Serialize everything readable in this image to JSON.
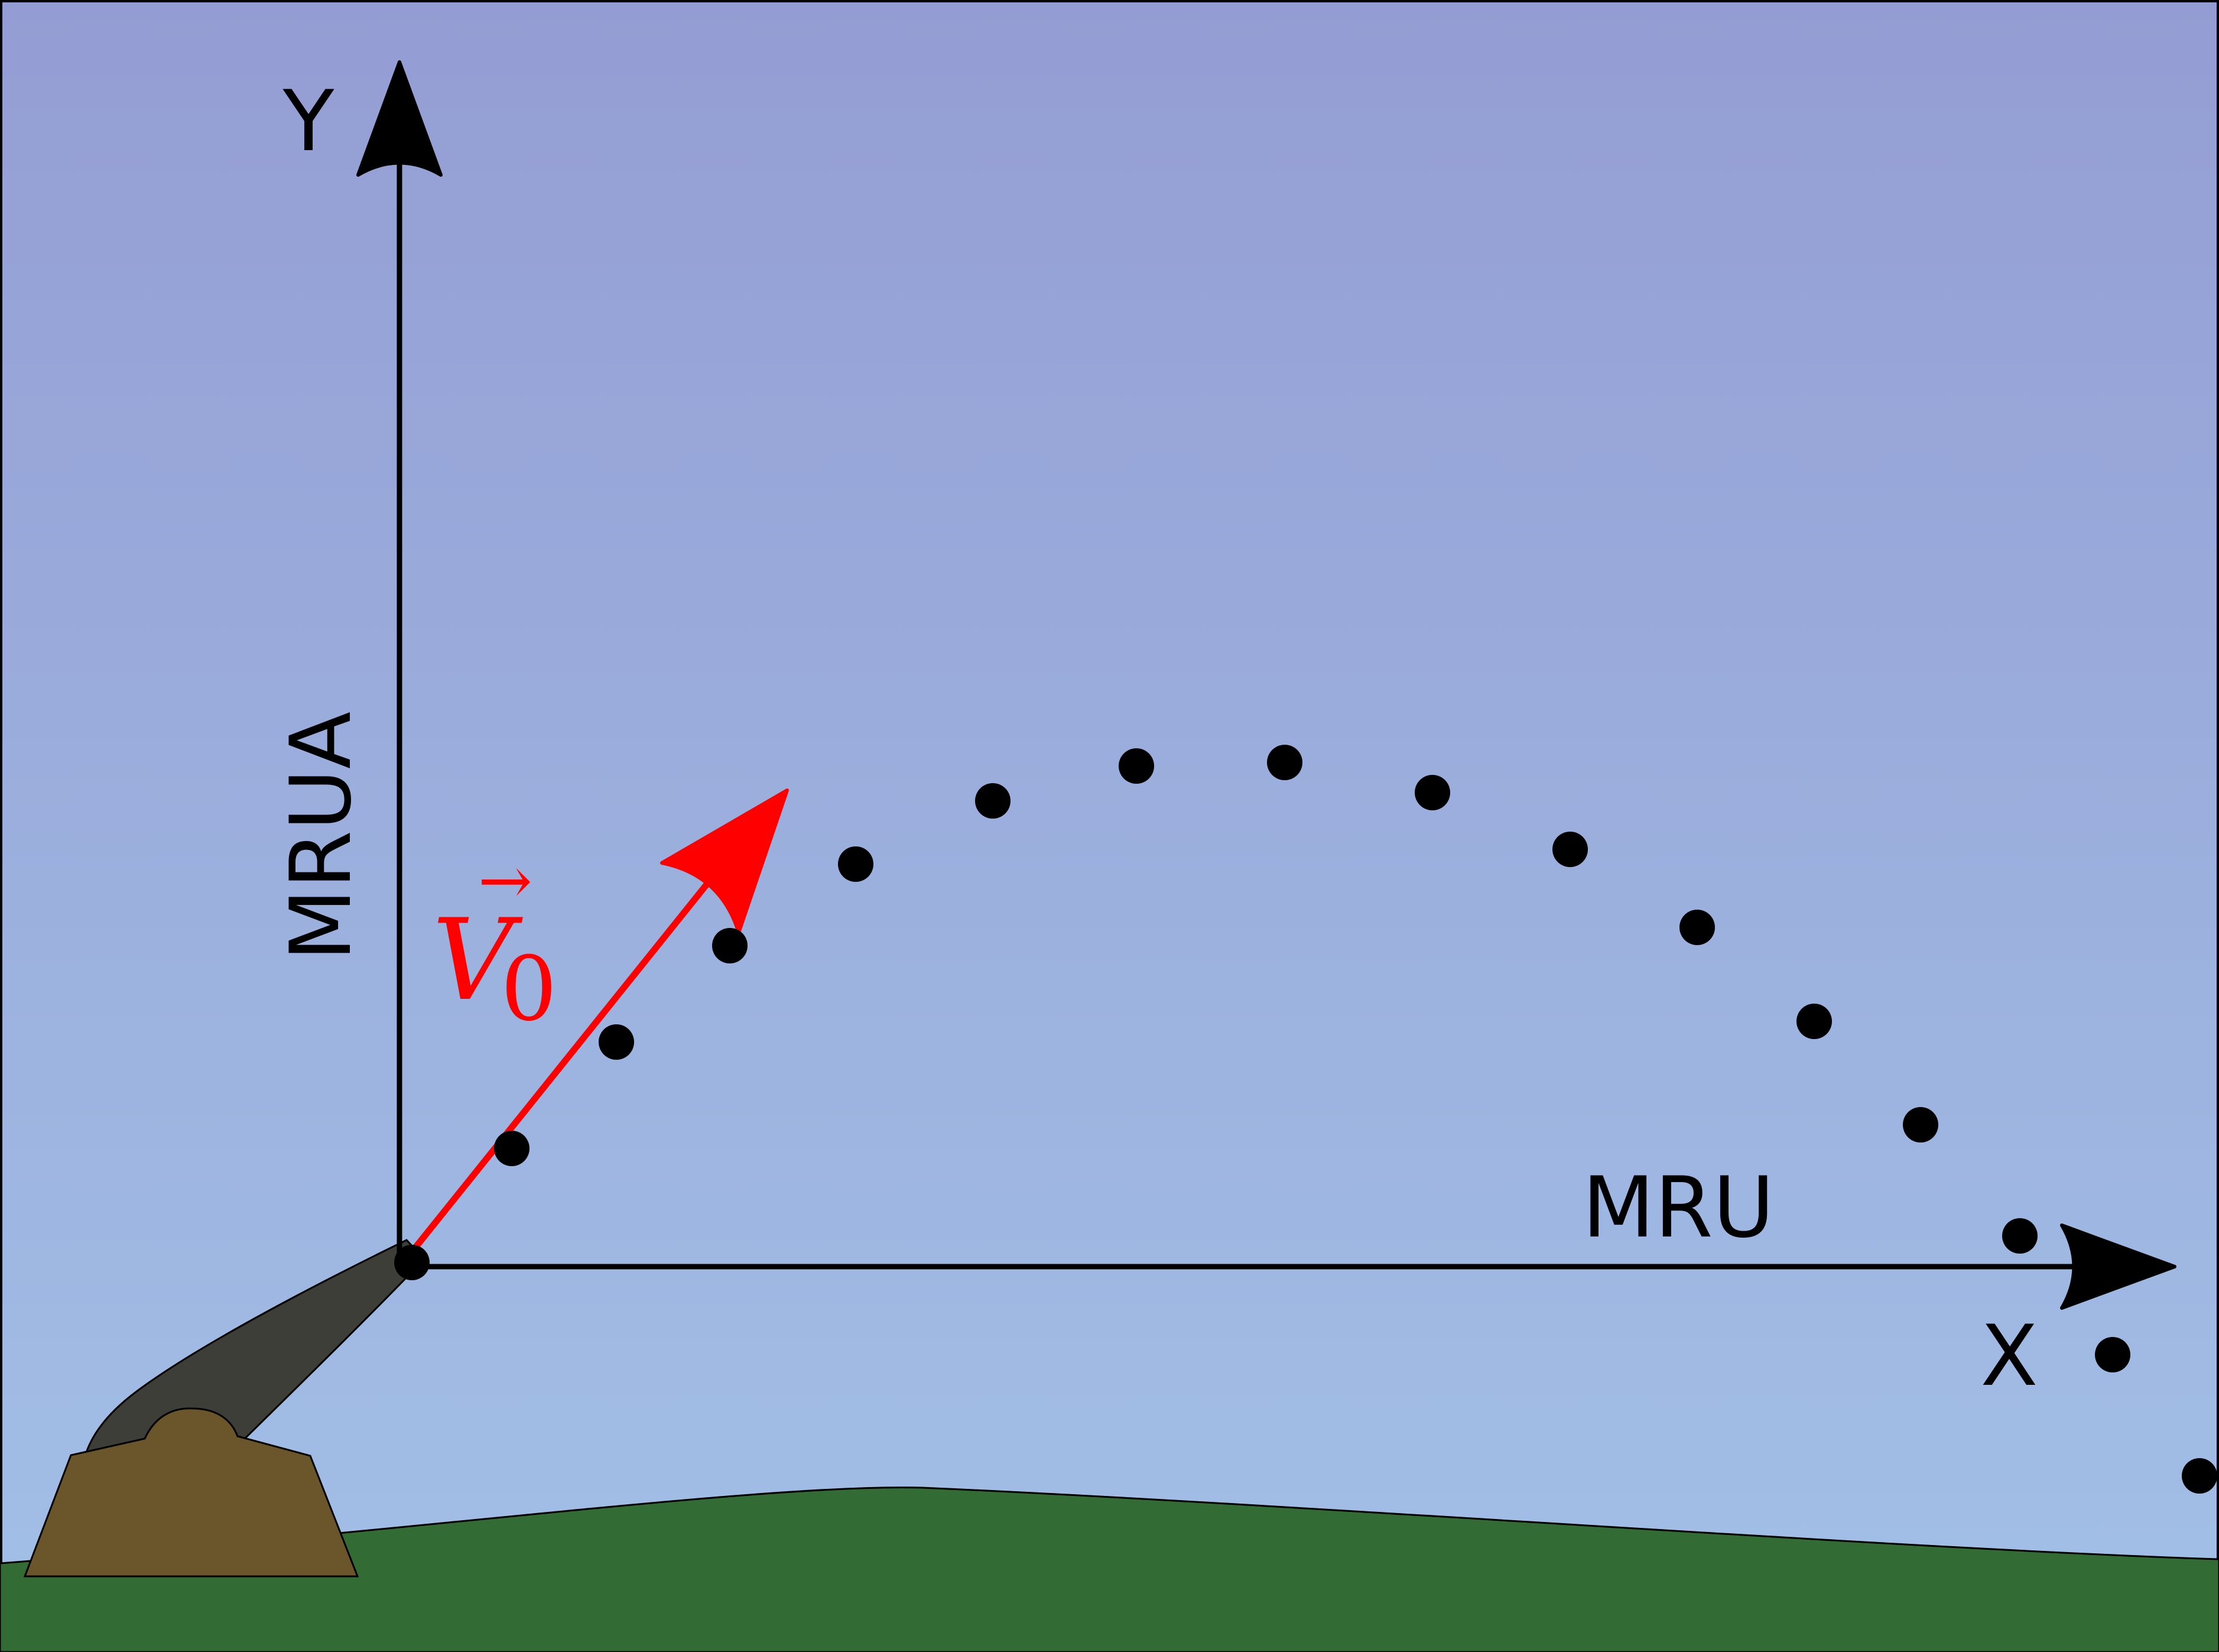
{
  "labels": {
    "y_axis": "Y",
    "x_axis": "X",
    "vertical_motion": "MRUA",
    "horizontal_motion": "MRU",
    "velocity_symbol": "V",
    "velocity_subscript": "0",
    "velocity_arrow_glyph": "→"
  },
  "colors": {
    "sky_top": "#949dd3",
    "sky_bottom": "#a2c0e7",
    "ground": "#326b33",
    "cannon_base": "#6a562a",
    "cannon_barrel": "#3e3e38",
    "velocity_vector": "#ff0000",
    "axes": "#000000",
    "trajectory_points": "#000000"
  }
}
